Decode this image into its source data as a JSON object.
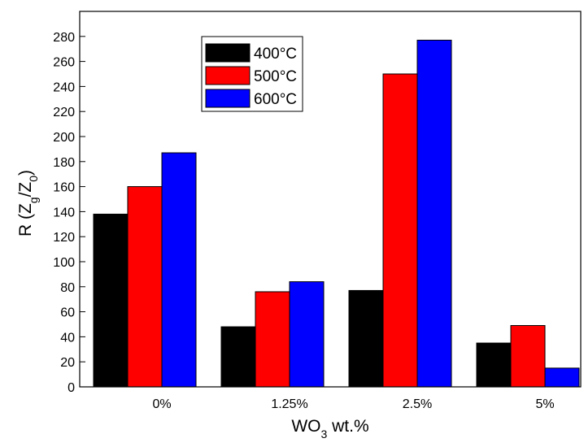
{
  "chart_data": {
    "type": "bar",
    "categories": [
      "0%",
      "1.25%",
      "2.5%",
      "5%"
    ],
    "series": [
      {
        "name": "400°C",
        "color": "#000000",
        "values": [
          138,
          48,
          77,
          35
        ]
      },
      {
        "name": "500°C",
        "color": "#ff0000",
        "values": [
          160,
          76,
          250,
          49
        ]
      },
      {
        "name": "600°C",
        "color": "#0000ff",
        "values": [
          187,
          84,
          277,
          15
        ]
      }
    ],
    "ylim": [
      0,
      300
    ],
    "yticks": [
      0,
      20,
      40,
      60,
      80,
      100,
      120,
      140,
      160,
      180,
      200,
      220,
      240,
      260,
      280
    ],
    "y_label_parts": [
      {
        "text": "R (Z"
      },
      {
        "text": "g",
        "sub": true
      },
      {
        "text": "/Z"
      },
      {
        "text": "0",
        "sub": true
      },
      {
        "text": ")"
      }
    ],
    "x_label_parts": [
      {
        "text": "WO"
      },
      {
        "text": "3",
        "sub": true
      },
      {
        "text": " wt.%"
      }
    ],
    "legend": "upper-left"
  }
}
